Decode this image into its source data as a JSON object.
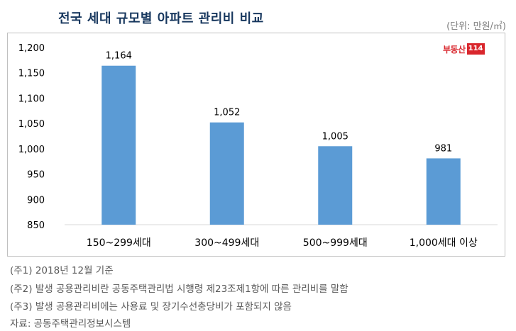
{
  "header": {
    "title": "전국 세대 규모별 아파트 관리비 비교",
    "unit": "(단위: 만원/㎡)"
  },
  "brand": {
    "text": "부동산",
    "number": "114",
    "color": "#d9262c"
  },
  "chart_data": {
    "type": "bar",
    "title": "전국 세대 규모별 아파트 관리비 비교",
    "categories": [
      "150~299세대",
      "300~499세대",
      "500~999세대",
      "1,000세대 이상"
    ],
    "values": [
      1164,
      1052,
      1005,
      981
    ],
    "value_labels": [
      "1,164",
      "1,052",
      "1,005",
      "981"
    ],
    "ylim": [
      850,
      1200
    ],
    "yticks": [
      850,
      900,
      950,
      1000,
      1050,
      1100,
      1150,
      1200
    ],
    "ytick_labels": [
      "850",
      "900",
      "950",
      "1,000",
      "1,050",
      "1,100",
      "1,150",
      "1,200"
    ],
    "xlabel": "",
    "ylabel": "",
    "grid": false,
    "legend": "none",
    "bar_color": "#5b9bd5"
  },
  "notes": [
    "(주1) 2018년 12월 기준",
    "(주2) 발생 공용관리비란 공동주택관리법 시행령 제23조제1항에 따른 관리비를 말함",
    "(주3) 발생 공용관리비에는 사용료 및 장기수선충당비가 포함되지 않음",
    "자료: 공동주택관리정보시스템"
  ]
}
